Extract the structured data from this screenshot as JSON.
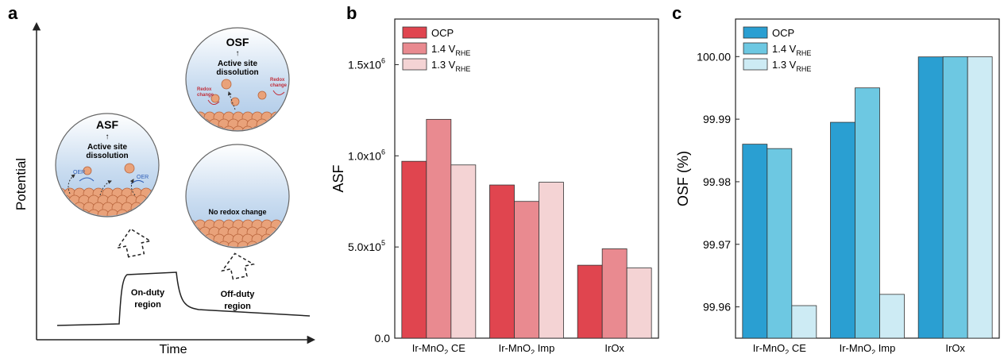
{
  "panel_a": {
    "label": "a",
    "ylabel": "Potential",
    "xlabel": "Time",
    "asf_title": "ASF",
    "asf_arrow": "↑",
    "asf_line1": "Active site",
    "asf_line2": "dissolution",
    "oer_left": "OER",
    "oer_right": "OER",
    "osf_title": "OSF",
    "osf_arrow": "↑",
    "osf_line1": "Active site",
    "osf_line2": "dissolution",
    "redox_left_1": "Redox",
    "redox_left_2": "change",
    "redox_right_1": "Redox",
    "redox_right_2": "change",
    "no_redox": "No redox change",
    "on_duty_1": "On-duty",
    "on_duty_2": "region",
    "off_duty_1": "Off-duty",
    "off_duty_2": "region"
  },
  "chart_data": [
    {
      "panel": "b",
      "type": "bar",
      "title": "",
      "xlabel": "",
      "ylabel": "ASF",
      "categories": [
        {
          "main": "Ir-MnO",
          "sub": "2",
          "tail": " CE"
        },
        {
          "main": "Ir-MnO",
          "sub": "2",
          "tail": " Imp"
        },
        {
          "main": "IrOx",
          "sub": "",
          "tail": ""
        }
      ],
      "series": [
        {
          "legend": "OCP",
          "legend_sub": "",
          "color": "#e0454f",
          "values": [
            970000,
            840000,
            400000
          ]
        },
        {
          "legend": "1.4 V",
          "legend_sub": "RHE",
          "color": "#e98a90",
          "values": [
            1200000,
            750000,
            490000
          ]
        },
        {
          "legend": "1.3 V",
          "legend_sub": "RHE",
          "color": "#f4d3d4",
          "values": [
            950000,
            855000,
            385000
          ]
        }
      ],
      "ylim": [
        0,
        1750000
      ],
      "yticks": [
        0,
        500000,
        1000000,
        1500000
      ],
      "ytick_labels": [
        "0.0",
        "5.0x10",
        "1.0x10",
        "1.5x10"
      ],
      "ytick_sups": [
        "",
        "5",
        "6",
        "6"
      ],
      "legend_position": "top-left",
      "grid": false
    },
    {
      "panel": "c",
      "type": "bar",
      "title": "",
      "xlabel": "",
      "ylabel": "OSF (%)",
      "categories": [
        {
          "main": "Ir-MnO",
          "sub": "2",
          "tail": " CE"
        },
        {
          "main": "Ir-MnO",
          "sub": "2",
          "tail": " Imp"
        },
        {
          "main": "IrOx",
          "sub": "",
          "tail": ""
        }
      ],
      "series": [
        {
          "legend": "OCP",
          "legend_sub": "",
          "color": "#2a9fd2",
          "values": [
            99.986,
            99.9895,
            99.99995
          ]
        },
        {
          "legend": "1.4 V",
          "legend_sub": "RHE",
          "color": "#6dc8e2",
          "values": [
            99.9853,
            99.995,
            99.99998
          ]
        },
        {
          "legend": "1.3 V",
          "legend_sub": "RHE",
          "color": "#cdebf4",
          "values": [
            99.9602,
            99.962,
            99.99996
          ]
        }
      ],
      "ylim": [
        99.955,
        100.006
      ],
      "yticks": [
        99.96,
        99.97,
        99.98,
        99.99,
        100.0
      ],
      "ytick_labels": [
        "99.96",
        "99.97",
        "99.98",
        "99.99",
        "100.00"
      ],
      "ytick_sups": [
        "",
        "",
        "",
        "",
        ""
      ],
      "legend_position": "top-left",
      "grid": false
    }
  ]
}
